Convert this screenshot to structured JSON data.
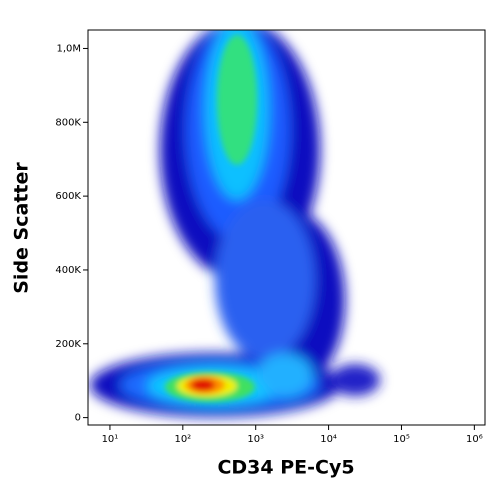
{
  "chart_data": {
    "type": "density",
    "xlabel": "CD34 PE-Cy5",
    "ylabel": "Side Scatter",
    "xscale": "log",
    "xlim": [
      5,
      1400000
    ],
    "xticks": [
      {
        "value": 10,
        "label": "10¹"
      },
      {
        "value": 100,
        "label": "10²"
      },
      {
        "value": 1000,
        "label": "10³"
      },
      {
        "value": 10000,
        "label": "10⁴"
      },
      {
        "value": 100000,
        "label": "10⁵"
      },
      {
        "value": 1000000,
        "label": "10⁶"
      }
    ],
    "ylim": [
      -20000,
      1050000
    ],
    "yticks": [
      0,
      {
        "value": 200000,
        "label": "200K"
      },
      {
        "value": 400000,
        "label": "400K"
      },
      {
        "value": 600000,
        "label": "600K"
      },
      {
        "value": 800000,
        "label": "800K"
      },
      {
        "value": 1000000,
        "label": "1,0M"
      }
    ]
  }
}
